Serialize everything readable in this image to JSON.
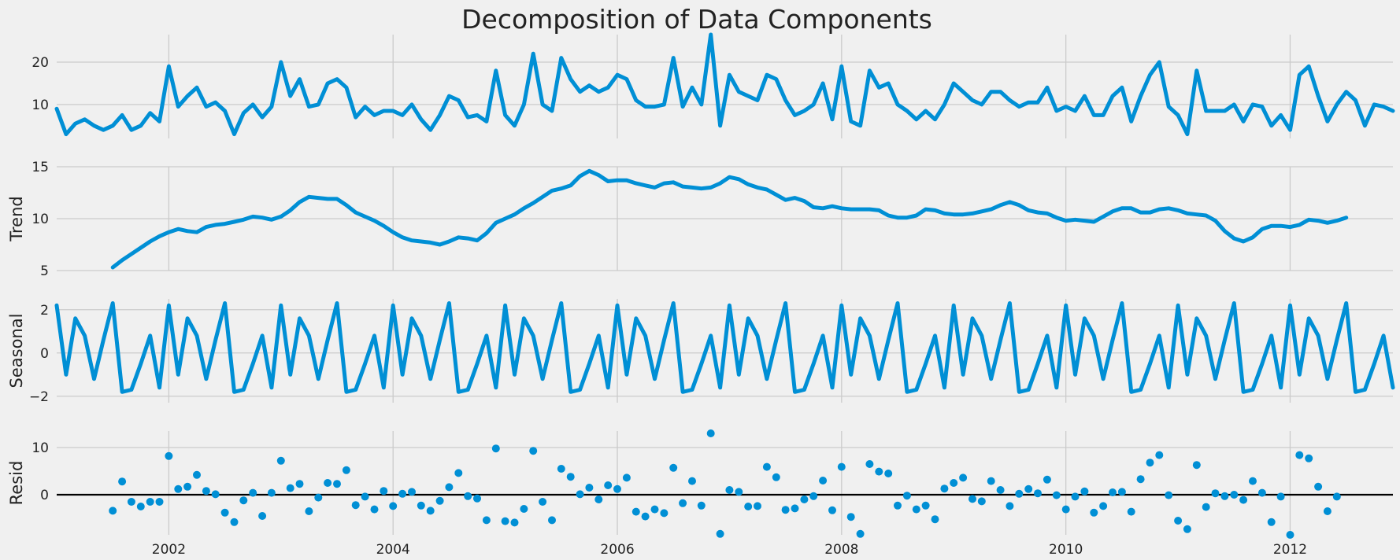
{
  "chart_data": {
    "type": "line",
    "title": "Decomposition of Data Components",
    "x_ticks": [
      "2002",
      "2004",
      "2006",
      "2008",
      "2010",
      "2012"
    ],
    "x_range": [
      "2001-01",
      "2012-12"
    ],
    "line_color": "#008fd5",
    "background": "#f0f0f0",
    "panels": [
      {
        "name": "observed",
        "ylabel": "",
        "type": "line",
        "ylim": [
          2,
          26.5
        ],
        "yticks": [
          10,
          20
        ],
        "grid": true,
        "start": "2001-01",
        "values": [
          9,
          3,
          5.5,
          6.5,
          5,
          4,
          5,
          7.5,
          4,
          5,
          8,
          6,
          19,
          9.5,
          12,
          14,
          9.5,
          10.5,
          8.5,
          3,
          8,
          10,
          7,
          9.5,
          20,
          12,
          16,
          9.5,
          10,
          15,
          16,
          14,
          7,
          9.5,
          7.5,
          8.5,
          8.5,
          7.5,
          10,
          6.5,
          4,
          7.5,
          12,
          11,
          7,
          7.5,
          6,
          18,
          7.5,
          5,
          10,
          22,
          10,
          8.5,
          21,
          16,
          13,
          14.5,
          13,
          14,
          17,
          16,
          11,
          9.5,
          9.5,
          10,
          21,
          9.5,
          14,
          10,
          26.5,
          5,
          17,
          13,
          12,
          11,
          17,
          16,
          11,
          7.5,
          8.5,
          10,
          15,
          6.5,
          19,
          6,
          5,
          18,
          14,
          15,
          10,
          8.5,
          6.5,
          8.5,
          6.5,
          10,
          15,
          13,
          11,
          10,
          13,
          13,
          11,
          9.5,
          10.5,
          10.5,
          14,
          8.5,
          9.5,
          8.5,
          12,
          7.5,
          7.5,
          12,
          14,
          6,
          12,
          17,
          20,
          9.5,
          7.5,
          3,
          18,
          8.5,
          8.5,
          8.5,
          10,
          6,
          10,
          9.5,
          5,
          7.5,
          4,
          17,
          19,
          12,
          6,
          10,
          13,
          11,
          5,
          10,
          9.5,
          8.5
        ]
      },
      {
        "name": "trend",
        "ylabel": "Trend",
        "type": "line",
        "ylim": [
          5,
          15
        ],
        "yticks": [
          5,
          10,
          15
        ],
        "grid": true,
        "start": "2001-07",
        "values": [
          5.3,
          6.0,
          6.6,
          7.2,
          7.8,
          8.3,
          8.7,
          9.0,
          8.8,
          8.7,
          9.2,
          9.4,
          9.5,
          9.7,
          9.9,
          10.2,
          10.1,
          9.9,
          10.2,
          10.8,
          11.6,
          12.1,
          12.0,
          11.9,
          11.9,
          11.3,
          10.6,
          10.2,
          9.8,
          9.3,
          8.7,
          8.2,
          7.9,
          7.8,
          7.7,
          7.5,
          7.8,
          8.2,
          8.1,
          7.9,
          8.6,
          9.6,
          10.0,
          10.4,
          11.0,
          11.5,
          12.1,
          12.7,
          12.9,
          13.2,
          14.1,
          14.6,
          14.2,
          13.6,
          13.7,
          13.7,
          13.4,
          13.2,
          13.0,
          13.4,
          13.5,
          13.1,
          13.0,
          12.9,
          13.0,
          13.4,
          14.0,
          13.8,
          13.3,
          13.0,
          12.8,
          12.3,
          11.8,
          12.0,
          11.7,
          11.1,
          11.0,
          11.2,
          11.0,
          10.9,
          10.9,
          10.9,
          10.8,
          10.3,
          10.1,
          10.1,
          10.3,
          10.9,
          10.8,
          10.5,
          10.4,
          10.4,
          10.5,
          10.7,
          10.9,
          11.3,
          11.6,
          11.3,
          10.8,
          10.6,
          10.5,
          10.1,
          9.8,
          9.9,
          9.8,
          9.7,
          10.2,
          10.7,
          11.0,
          11.0,
          10.6,
          10.6,
          10.9,
          11.0,
          10.8,
          10.5,
          10.4,
          10.3,
          9.8,
          8.8,
          8.1,
          7.8,
          8.2,
          9.0,
          9.3,
          9.3,
          9.2,
          9.4,
          9.9,
          9.8,
          9.6,
          9.8,
          10.1
        ]
      },
      {
        "name": "seasonal",
        "ylabel": "Seasonal",
        "type": "line",
        "ylim": [
          -2.3,
          2.5
        ],
        "yticks": [
          -2,
          0,
          2
        ],
        "grid": true,
        "start": "2001-01",
        "pattern": [
          2.2,
          -1.0,
          1.6,
          0.8,
          -1.2,
          0.6,
          2.3,
          -1.8,
          -1.7,
          -0.5,
          0.8,
          -1.6
        ],
        "cycles": 12
      },
      {
        "name": "resid",
        "ylabel": "Resid",
        "type": "scatter",
        "ylim": [
          -8.5,
          13.5
        ],
        "yticks": [
          0,
          10
        ],
        "grid": true,
        "zero_line": true,
        "start": "2001-07",
        "values": [
          -3.4,
          2.8,
          -1.5,
          -2.5,
          -1.5,
          -1.5,
          8.2,
          1.2,
          1.7,
          4.2,
          0.8,
          0.1,
          -3.8,
          -5.8,
          -1.2,
          0.4,
          -4.5,
          0.4,
          7.2,
          1.4,
          2.3,
          -3.5,
          -0.6,
          2.5,
          2.3,
          5.2,
          -2.2,
          -0.4,
          -3.1,
          0.8,
          -2.4,
          0.2,
          0.6,
          -2.3,
          -3.4,
          -1.3,
          1.6,
          4.6,
          -0.3,
          -0.8,
          -5.4,
          9.8,
          -5.6,
          -5.9,
          -3.0,
          9.3,
          -1.5,
          -5.4,
          5.5,
          3.8,
          0.1,
          1.5,
          -1.0,
          2.0,
          1.2,
          3.6,
          -3.6,
          -4.6,
          -3.1,
          -3.9,
          5.7,
          -1.8,
          2.9,
          -2.3,
          13.0,
          -8.3,
          1.0,
          0.6,
          -2.5,
          -2.4,
          5.9,
          3.7,
          -3.2,
          -2.9,
          -1.0,
          -0.3,
          3.0,
          -3.3,
          5.9,
          -4.7,
          -8.3,
          6.5,
          4.9,
          4.5,
          -2.3,
          -0.2,
          -3.1,
          -2.3,
          -5.2,
          1.3,
          2.5,
          3.6,
          -0.9,
          -1.4,
          2.9,
          1.0,
          -2.4,
          0.2,
          1.2,
          0.3,
          3.2,
          -0.1,
          -3.1,
          -0.4,
          0.7,
          -3.8,
          -2.4,
          0.5,
          0.6,
          -3.6,
          3.3,
          6.8,
          8.4,
          -0.1,
          -5.5,
          -7.3,
          6.3,
          -2.6,
          0.3,
          -0.3,
          0.0,
          -1.1,
          2.9,
          0.4,
          -5.8,
          -0.4,
          -8.5,
          8.4,
          7.7,
          1.7,
          -3.5,
          -0.4
        ]
      }
    ]
  }
}
